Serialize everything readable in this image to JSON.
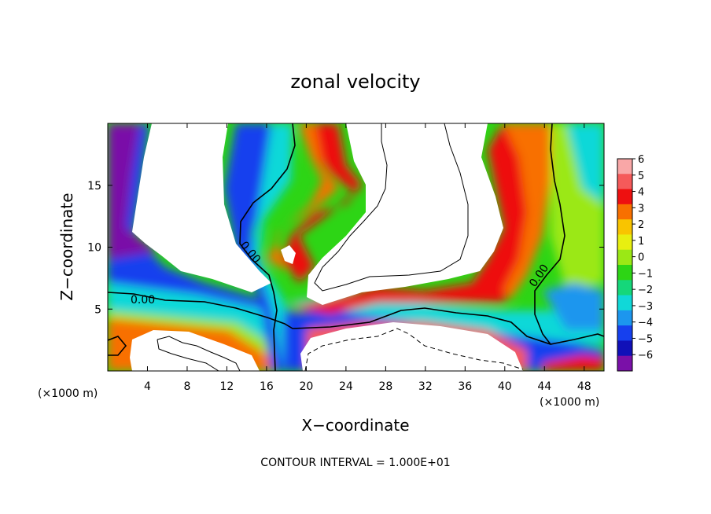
{
  "chart_data": {
    "type": "heatmap",
    "title": "zonal velocity",
    "xlabel": "X−coordinate",
    "ylabel": "Z−coordinate",
    "x_unit_label": "(×1000 m)",
    "y_unit_label": "(×1000 m)",
    "xlim": [
      0,
      50
    ],
    "ylim": [
      0,
      20
    ],
    "x_ticks": [
      4,
      8,
      12,
      16,
      20,
      24,
      28,
      32,
      36,
      40,
      44,
      48
    ],
    "y_ticks": [
      5,
      10,
      15
    ],
    "colorbar": {
      "ticks": [
        "6",
        "5",
        "4",
        "3",
        "2",
        "1",
        "0",
        "−1",
        "−2",
        "−3",
        "−4",
        "−5",
        "−6"
      ],
      "colors": [
        "#f9a7a7",
        "#f55a5a",
        "#ee1010",
        "#f87000",
        "#f9c400",
        "#e8ef10",
        "#9be815",
        "#2dd515",
        "#15d77a",
        "#10d8d8",
        "#1c96ee",
        "#1640ee",
        "#1010b8",
        "#7a10a8"
      ]
    },
    "contour_labels": [
      "0.00",
      "0.00",
      "0.00"
    ],
    "contour_interval_text": "CONTOUR INTERVAL = 1.000E+01"
  }
}
